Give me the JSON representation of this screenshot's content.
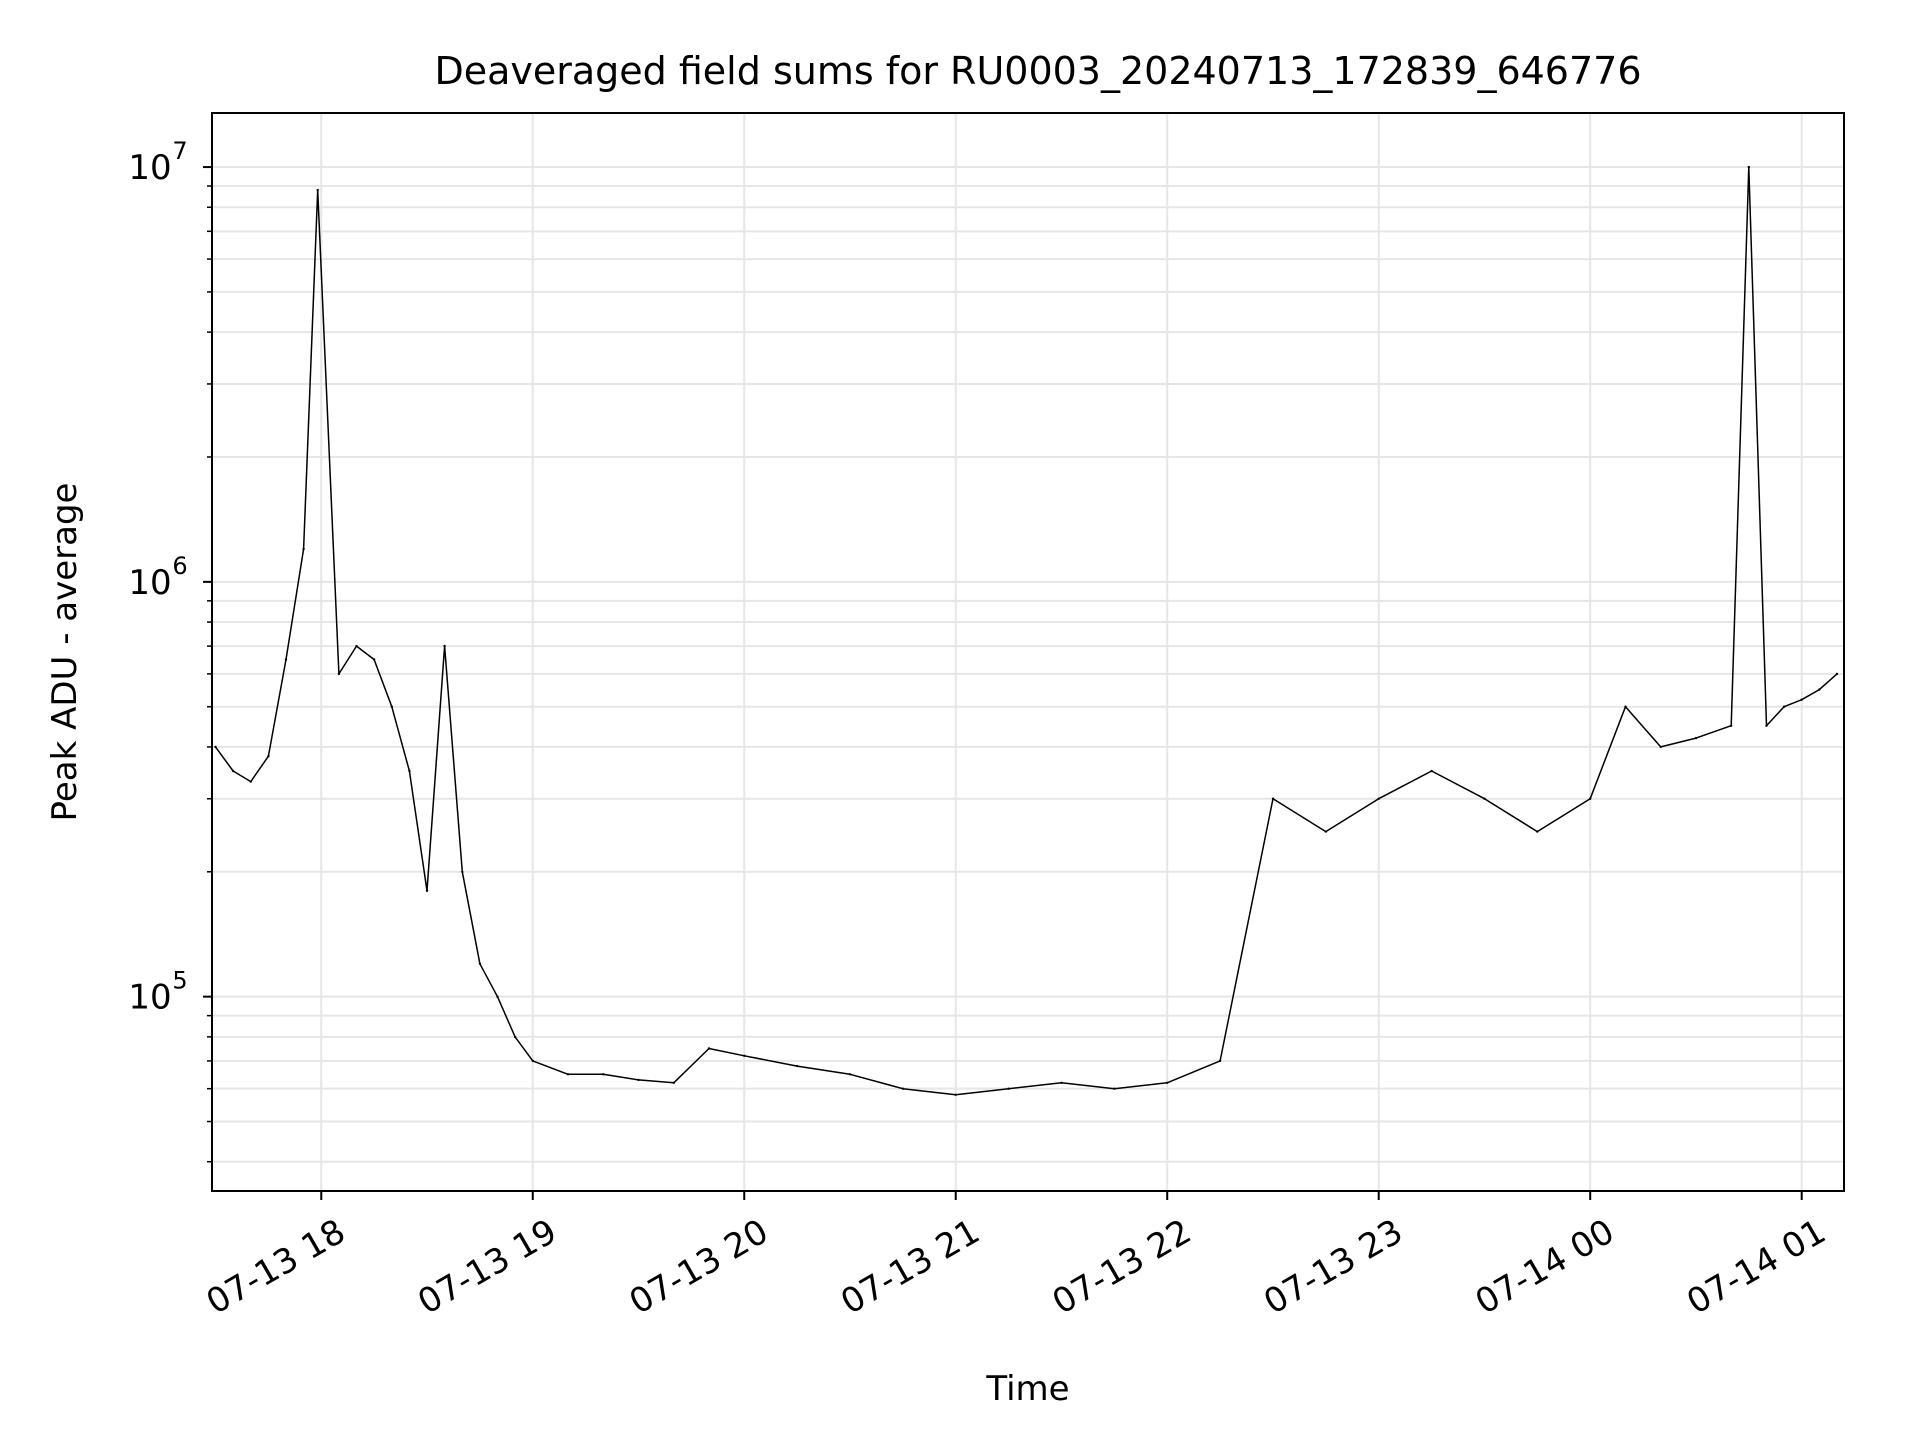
{
  "chart_data": {
    "type": "line",
    "title": "Deaveraged field sums for RU0003_20240713_172839_646776",
    "xlabel": "Time",
    "ylabel": "Peak ADU - average",
    "yscale": "log",
    "ylim": [
      34000,
      13500000
    ],
    "xlim": [
      "2024-07-13 17:29",
      "2024-07-14 01:12"
    ],
    "grid": true,
    "line_color": "#000000",
    "x_ticks": [
      {
        "t": "2024-07-13 18:00",
        "label": "07-13 18"
      },
      {
        "t": "2024-07-13 19:00",
        "label": "07-13 19"
      },
      {
        "t": "2024-07-13 20:00",
        "label": "07-13 20"
      },
      {
        "t": "2024-07-13 21:00",
        "label": "07-13 21"
      },
      {
        "t": "2024-07-13 22:00",
        "label": "07-13 22"
      },
      {
        "t": "2024-07-13 23:00",
        "label": "07-13 23"
      },
      {
        "t": "2024-07-14 00:00",
        "label": "07-14 00"
      },
      {
        "t": "2024-07-14 01:00",
        "label": "07-14 01"
      }
    ],
    "y_ticks": [
      {
        "value": 100000,
        "base": "10",
        "exp": "5"
      },
      {
        "value": 1000000,
        "base": "10",
        "exp": "6"
      },
      {
        "value": 10000000,
        "base": "10",
        "exp": "7"
      }
    ],
    "series": [
      {
        "x": [
          "2024-07-13 17:30",
          "2024-07-13 17:35",
          "2024-07-13 17:40",
          "2024-07-13 17:45",
          "2024-07-13 17:50",
          "2024-07-13 17:55",
          "2024-07-13 17:59",
          "2024-07-13 18:05",
          "2024-07-13 18:10",
          "2024-07-13 18:15",
          "2024-07-13 18:20",
          "2024-07-13 18:25",
          "2024-07-13 18:30",
          "2024-07-13 18:35",
          "2024-07-13 18:40",
          "2024-07-13 18:45",
          "2024-07-13 18:50",
          "2024-07-13 18:55",
          "2024-07-13 19:00",
          "2024-07-13 19:10",
          "2024-07-13 19:20",
          "2024-07-13 19:30",
          "2024-07-13 19:40",
          "2024-07-13 19:50",
          "2024-07-13 20:00",
          "2024-07-13 20:15",
          "2024-07-13 20:30",
          "2024-07-13 20:45",
          "2024-07-13 21:00",
          "2024-07-13 21:15",
          "2024-07-13 21:30",
          "2024-07-13 21:45",
          "2024-07-13 22:00",
          "2024-07-13 22:15",
          "2024-07-13 22:30",
          "2024-07-13 22:45",
          "2024-07-13 23:00",
          "2024-07-13 23:15",
          "2024-07-13 23:30",
          "2024-07-13 23:45",
          "2024-07-14 00:00",
          "2024-07-14 00:10",
          "2024-07-14 00:20",
          "2024-07-14 00:30",
          "2024-07-14 00:40",
          "2024-07-14 00:45",
          "2024-07-14 00:50",
          "2024-07-14 00:55",
          "2024-07-14 01:00",
          "2024-07-14 01:05",
          "2024-07-14 01:10"
        ],
        "y": [
          400000,
          350000,
          330000,
          380000,
          650000,
          1200000,
          8800000,
          600000,
          700000,
          650000,
          500000,
          350000,
          180000,
          700000,
          200000,
          120000,
          100000,
          80000,
          70000,
          65000,
          65000,
          63000,
          62000,
          75000,
          72000,
          68000,
          65000,
          60000,
          58000,
          60000,
          62000,
          60000,
          62000,
          70000,
          300000,
          250000,
          300000,
          350000,
          300000,
          250000,
          300000,
          500000,
          400000,
          420000,
          450000,
          10000000,
          450000,
          500000,
          520000,
          550000,
          600000
        ]
      }
    ]
  }
}
